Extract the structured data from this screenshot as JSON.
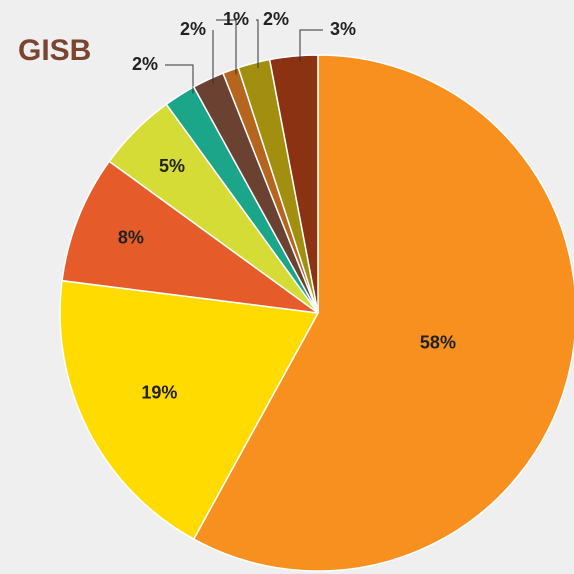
{
  "chart_data": {
    "type": "pie",
    "title": "GISB",
    "values": [
      58,
      19,
      8,
      5,
      2,
      2,
      1,
      2,
      3
    ],
    "value_labels": [
      "58%",
      "19%",
      "8%",
      "5%",
      "2%",
      "2%",
      "1%",
      "2%",
      "3%"
    ],
    "colors": [
      "#f7901e",
      "#ffdb00",
      "#e55b2a",
      "#d5dc35",
      "#1ba68a",
      "#6b4231",
      "#b5651d",
      "#a38f0f",
      "#8b3213"
    ]
  }
}
